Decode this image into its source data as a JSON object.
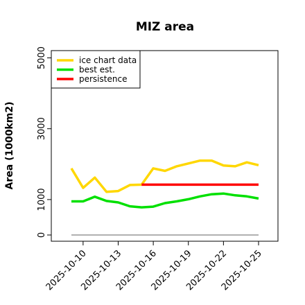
{
  "chart_data": {
    "type": "line",
    "title": "MIZ area",
    "xlabel": "",
    "ylabel": "Area (1000km2)",
    "x": [
      "2025-10-09",
      "2025-10-10",
      "2025-10-11",
      "2025-10-12",
      "2025-10-13",
      "2025-10-14",
      "2025-10-15",
      "2025-10-16",
      "2025-10-17",
      "2025-10-18",
      "2025-10-19",
      "2025-10-20",
      "2025-10-21",
      "2025-10-22",
      "2025-10-23",
      "2025-10-24",
      "2025-10-25"
    ],
    "xticks": [
      "2025-10-10",
      "2025-10-13",
      "2025-10-16",
      "2025-10-19",
      "2025-10-22",
      "2025-10-25"
    ],
    "yticks": [
      0,
      1000,
      3000,
      5000
    ],
    "ylim": [
      0,
      5300
    ],
    "grid": false,
    "legend_position": "top-left",
    "series": [
      {
        "name": "ice chart data",
        "color": "#ffd700",
        "values": [
          1880,
          1330,
          1620,
          1220,
          1240,
          1410,
          1420,
          1880,
          1810,
          1940,
          2020,
          2100,
          2100,
          1960,
          1940,
          2050,
          1970
        ]
      },
      {
        "name": "best est.",
        "color": "#00e000",
        "values": [
          950,
          950,
          1080,
          960,
          920,
          810,
          780,
          800,
          900,
          950,
          1010,
          1090,
          1150,
          1170,
          1120,
          1090,
          1030
        ]
      },
      {
        "name": "persistence",
        "color": "#ff0000",
        "values": [
          null,
          null,
          null,
          null,
          null,
          null,
          1420,
          1420,
          1420,
          1420,
          1420,
          1420,
          1420,
          1420,
          1420,
          1420,
          1420
        ]
      },
      {
        "name": "",
        "color": "#808080",
        "values": [
          0,
          0,
          0,
          0,
          0,
          0,
          0,
          0,
          0,
          0,
          0,
          0,
          0,
          0,
          0,
          0,
          0
        ]
      }
    ]
  }
}
